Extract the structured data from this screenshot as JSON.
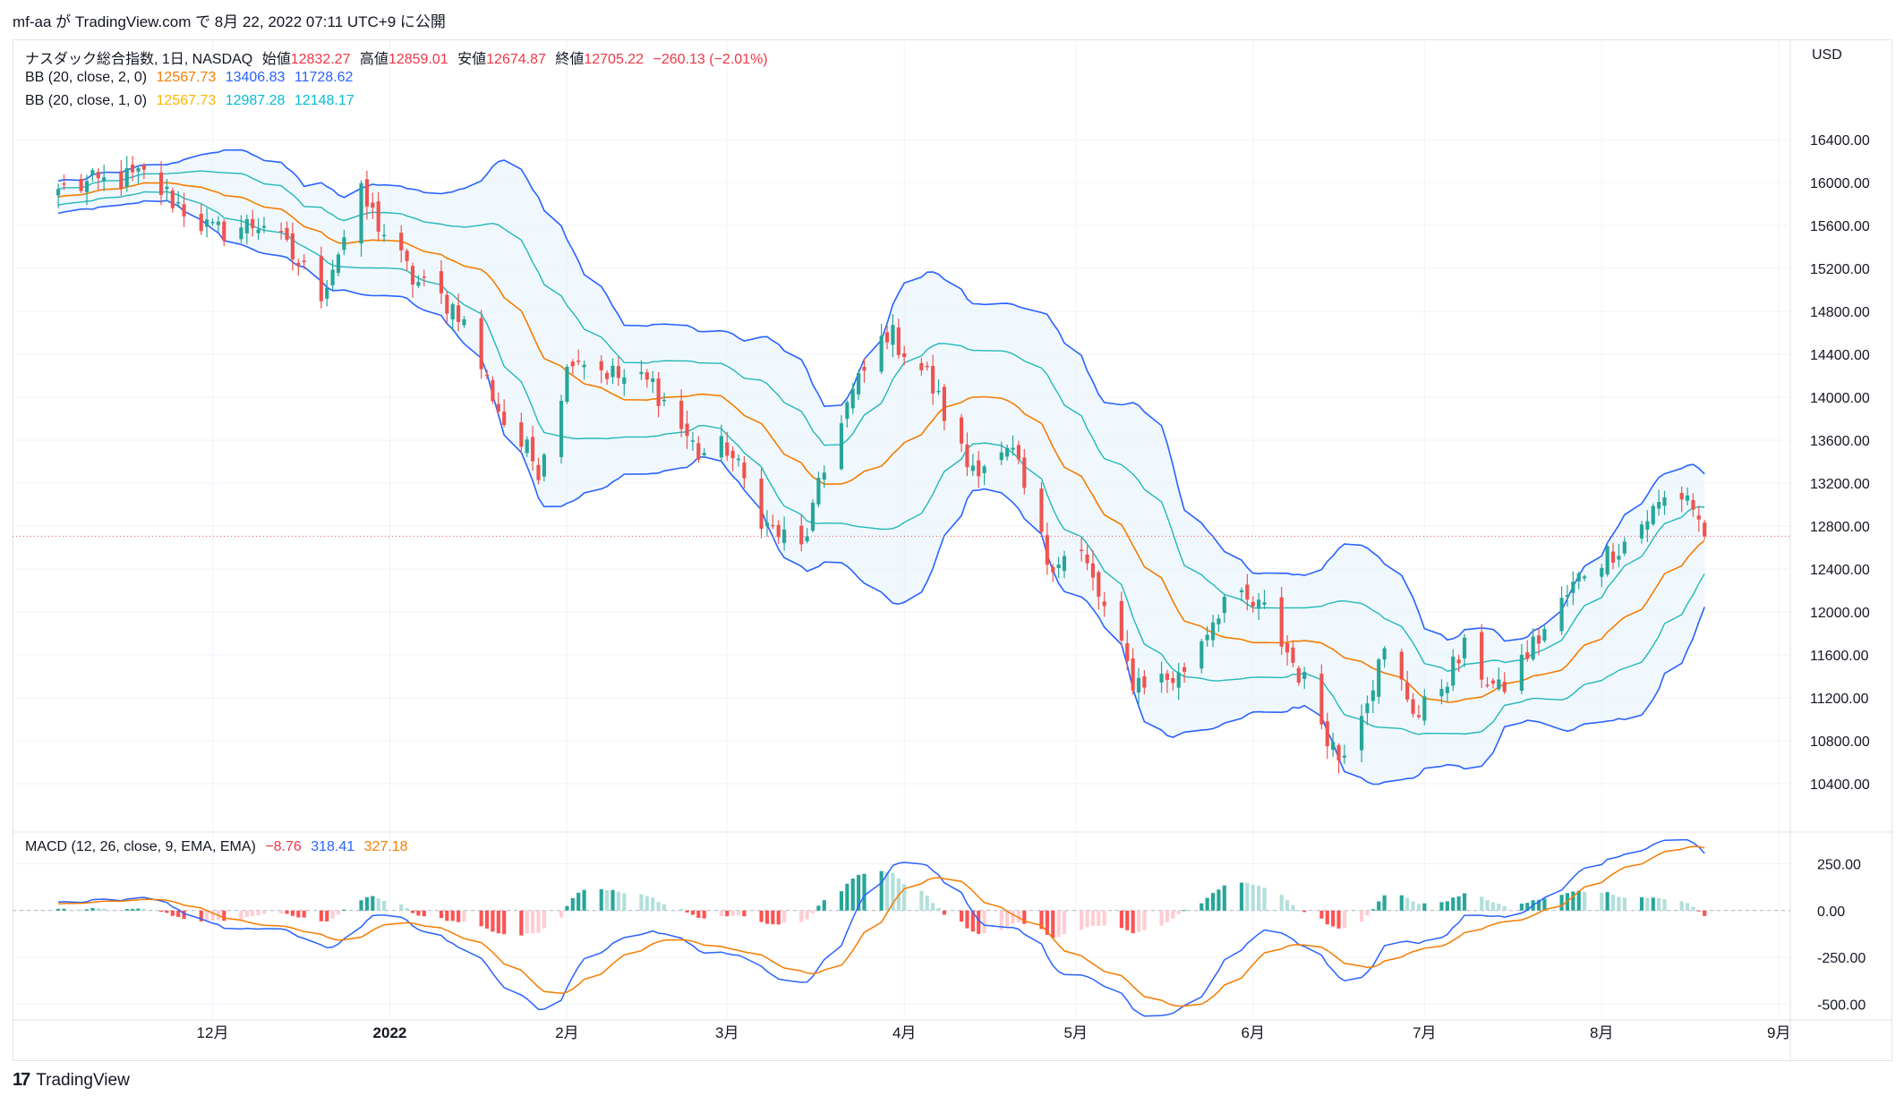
{
  "header": {
    "publish_line": "mf-aa が TradingView.com で 8月 22, 2022 07:11 UTC+9 に公開"
  },
  "legend": {
    "main": {
      "title": "ナスダック総合指数, 1日, NASDAQ",
      "open_label": "始値",
      "open": "12832.27",
      "high_label": "高値",
      "high": "12859.01",
      "low_label": "安値",
      "low": "12674.87",
      "close_label": "終値",
      "close": "12705.22",
      "change": "−260.13 (−2.01%)"
    },
    "bb2": {
      "title": "BB (20, close, 2, 0)",
      "basis": "12567.73",
      "upper": "13406.83",
      "lower": "11728.62"
    },
    "bb1": {
      "title": "BB (20, close, 1, 0)",
      "basis": "12567.73",
      "upper": "12987.28",
      "lower": "12148.17"
    },
    "macd": {
      "title": "MACD (12, 26, close, 9, EMA, EMA)",
      "hist": "−8.76",
      "macd": "318.41",
      "signal": "327.18"
    }
  },
  "footer": {
    "brand": "TradingView",
    "logo_glyph": "17"
  },
  "colors": {
    "up": "#26a69a",
    "down": "#ef5350",
    "bb_outer": "#2962ff",
    "bb_inner": "#22b8b8",
    "basis": "#f57c00",
    "fill": "#e3f2fd",
    "macd_line": "#2962ff",
    "signal_line": "#f57c00"
  },
  "chart_data": {
    "type": "candlestick",
    "price_axis": {
      "unit": "USD",
      "ticks": [
        10400,
        10800,
        11200,
        11600,
        12000,
        12400,
        12800,
        13200,
        13600,
        14000,
        14400,
        14800,
        15200,
        15600,
        16000,
        16400
      ],
      "ylim": [
        10200,
        16700
      ]
    },
    "macd_axis": {
      "ticks": [
        250,
        0,
        -250,
        -500
      ],
      "ylim": [
        -560,
        300
      ]
    },
    "time_axis": {
      "labels": [
        "12月",
        "2022",
        "2月",
        "3月",
        "4月",
        "5月",
        "6月",
        "7月",
        "8月",
        "9月"
      ]
    },
    "last_close": 12705.22,
    "close_path": [
      [
        "2021-11-04",
        15940
      ],
      [
        "2021-11-19",
        16057
      ],
      [
        "2021-12-01",
        15537
      ],
      [
        "2021-12-10",
        15630
      ],
      [
        "2021-12-20",
        14980
      ],
      [
        "2021-12-27",
        15871
      ],
      [
        "2022-01-05",
        15100
      ],
      [
        "2022-01-13",
        14806
      ],
      [
        "2022-01-21",
        13768
      ],
      [
        "2022-01-27",
        13352
      ],
      [
        "2022-02-02",
        14417
      ],
      [
        "2022-02-10",
        14185
      ],
      [
        "2022-02-16",
        14124
      ],
      [
        "2022-02-24",
        13473
      ],
      [
        "2022-03-01",
        13532
      ],
      [
        "2022-03-08",
        12795
      ],
      [
        "2022-03-14",
        12581
      ],
      [
        "2022-03-21",
        13838
      ],
      [
        "2022-03-29",
        14619
      ],
      [
        "2022-04-05",
        14204
      ],
      [
        "2022-04-12",
        13371
      ],
      [
        "2022-04-20",
        13453
      ],
      [
        "2022-04-26",
        12490
      ],
      [
        "2022-05-02",
        12536
      ],
      [
        "2022-05-11",
        11364
      ],
      [
        "2022-05-19",
        11388
      ],
      [
        "2022-05-27",
        12131
      ],
      [
        "2022-06-03",
        12012
      ],
      [
        "2022-06-10",
        11340
      ],
      [
        "2022-06-16",
        10646
      ],
      [
        "2022-06-24",
        11607
      ],
      [
        "2022-06-30",
        11028
      ],
      [
        "2022-07-08",
        11635
      ],
      [
        "2022-07-14",
        11247
      ],
      [
        "2022-07-22",
        11834
      ],
      [
        "2022-07-29",
        12390
      ],
      [
        "2022-08-05",
        12657
      ],
      [
        "2022-08-12",
        13047
      ],
      [
        "2022-08-16",
        13102
      ],
      [
        "2022-08-19",
        12705
      ]
    ]
  }
}
